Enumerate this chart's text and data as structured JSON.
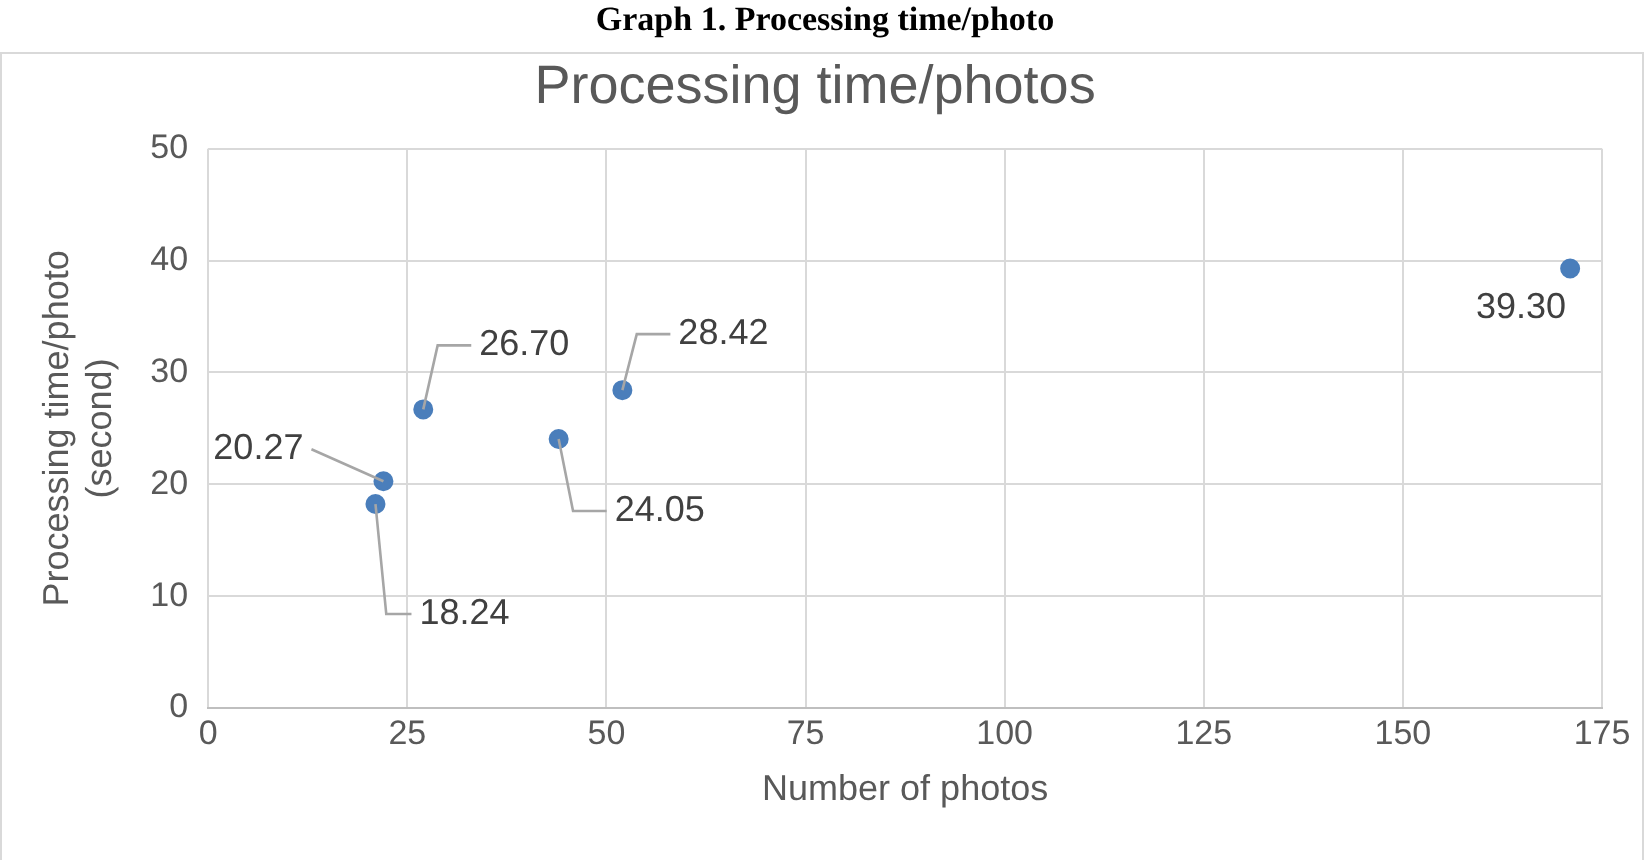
{
  "chart_data": {
    "type": "scatter",
    "title": "Processing time/photos",
    "xlabel": "Number of photos",
    "ylabel": "Processing time/photo (second)",
    "annotations": [
      "Graph 1. Processing time/photo"
    ],
    "series": [
      {
        "color": "#4a7ebb",
        "x": [
          21,
          22,
          27,
          44,
          52,
          171
        ],
        "values": [
          18.24,
          20.27,
          26.7,
          24.05,
          28.42,
          39.3
        ],
        "value_labels": [
          "18.24",
          "20.27",
          "26.70",
          "24.05",
          "28.42",
          "39.30"
        ]
      }
    ],
    "xlim": [
      0,
      175
    ],
    "xticks": [
      0,
      25,
      50,
      75,
      100,
      125,
      150,
      175
    ],
    "ylim": [
      0,
      50
    ],
    "yticks": [
      0,
      10,
      20,
      30,
      40,
      50
    ],
    "grid": true,
    "legend": false,
    "marker": "circle"
  }
}
